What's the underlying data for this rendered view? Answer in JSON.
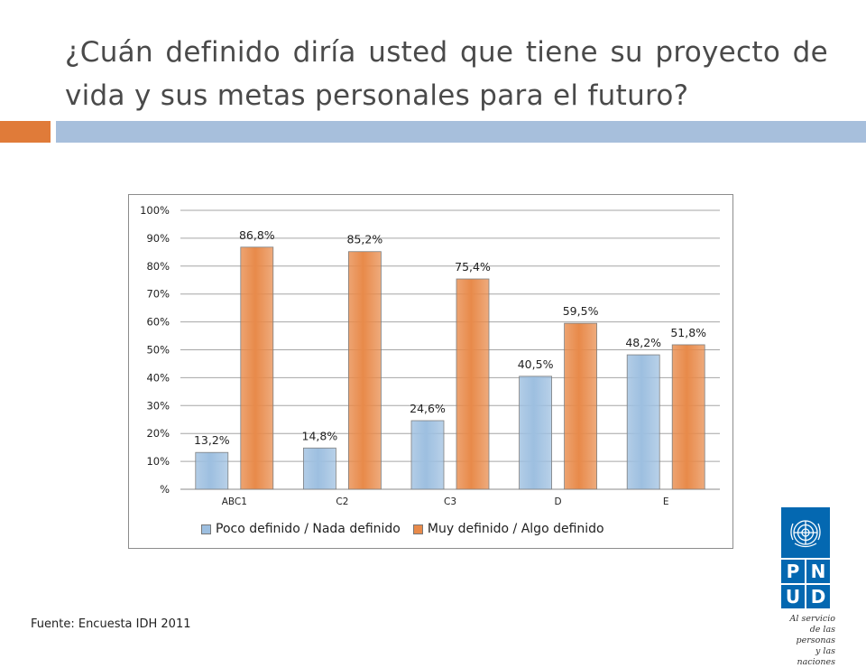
{
  "slide": {
    "title": "¿Cuán definido diría usted que tiene su proyecto de vida y sus metas personales para el futuro?",
    "source": "Fuente: Encuesta IDH 2011",
    "accent_colors": {
      "orange": "#e07b39",
      "blue": "#a7bfdc"
    }
  },
  "logo": {
    "letters": [
      "P",
      "N",
      "U",
      "D"
    ],
    "tagline_lines": [
      "Al servicio",
      "de las personas",
      "y las naciones"
    ],
    "color": "#0468b1"
  },
  "chart_data": {
    "type": "bar",
    "categories": [
      "ABC1",
      "C2",
      "C3",
      "D",
      "E"
    ],
    "series": [
      {
        "name": "Poco definido / Nada definido",
        "values": [
          13.2,
          14.8,
          24.6,
          40.5,
          48.2
        ],
        "labels": [
          "13,2%",
          "14,8%",
          "24,6%",
          "40,5%",
          "48,2%"
        ],
        "color": "#9dbfe0"
      },
      {
        "name": "Muy definido / Algo definido",
        "values": [
          86.8,
          85.2,
          75.4,
          59.5,
          51.8
        ],
        "labels": [
          "86,8%",
          "85,2%",
          "75,4%",
          "59,5%",
          "51,8%"
        ],
        "color": "#e88a4a"
      }
    ],
    "y_ticks": [
      "%",
      "10%",
      "20%",
      "30%",
      "40%",
      "50%",
      "60%",
      "70%",
      "80%",
      "90%",
      "100%"
    ],
    "ylim": [
      0,
      100
    ],
    "grid": true,
    "legend_position": "bottom"
  }
}
